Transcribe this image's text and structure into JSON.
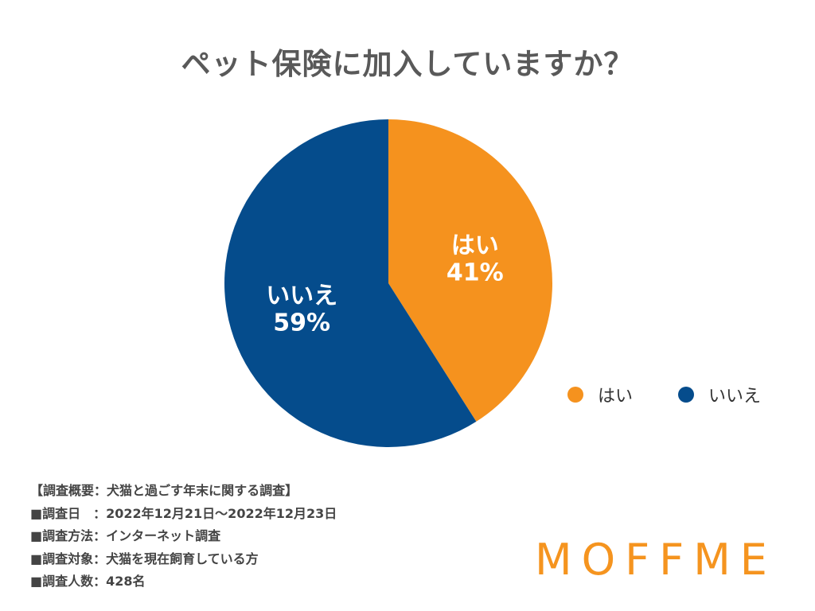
{
  "chart_data": {
    "type": "pie",
    "title": "ペット保険に加入していますか？",
    "categories": [
      "はい",
      "いいえ"
    ],
    "values": [
      41,
      59
    ],
    "slice_labels": [
      "41%",
      "59%"
    ],
    "colors": [
      "#f5921e",
      "#054c8c"
    ],
    "legend": [
      "はい",
      "いいえ"
    ],
    "legend_placement": "right"
  },
  "survey": {
    "lines": [
      "【調査概要：犬猫と過ごす年末に関する調査】",
      "■調査日　：2022年12月21日〜2022年12月23日",
      "■調査方法：インターネット調査",
      "■調査対象：犬猫を現在飼育している方",
      "■調査人数：428名"
    ]
  },
  "logo": {
    "text": "MOFFME",
    "color": "#f5941f"
  }
}
